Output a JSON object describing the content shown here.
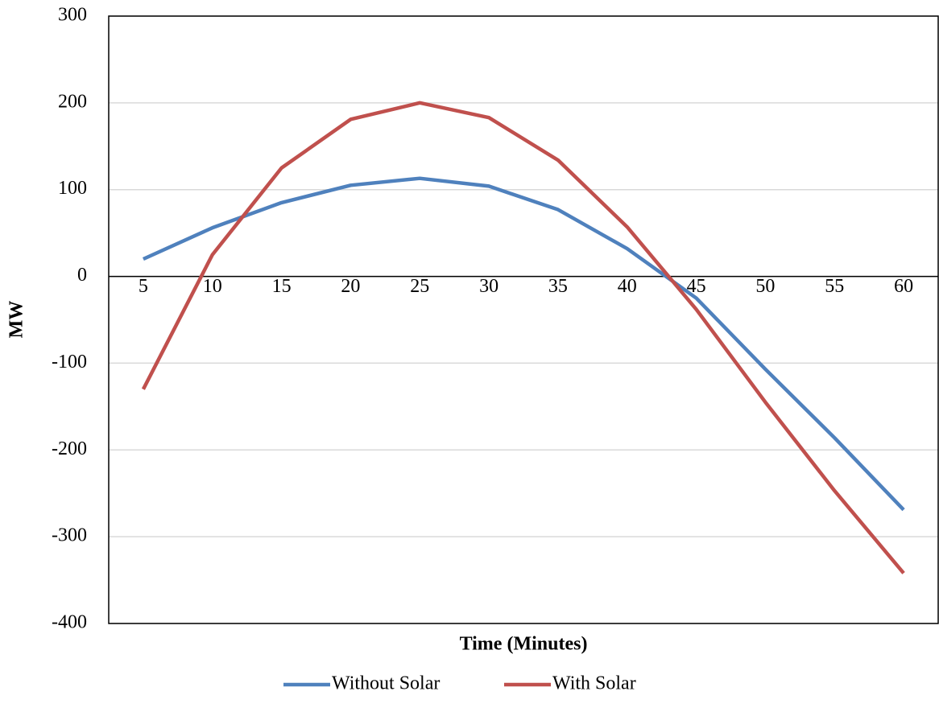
{
  "chart_data": {
    "type": "line",
    "x_label": "Time (Minutes)",
    "y_label": "MW",
    "categories": [
      5,
      10,
      15,
      20,
      25,
      30,
      35,
      40,
      45,
      50,
      55,
      60
    ],
    "series": [
      {
        "name": "Without Solar",
        "color": "#4f81bd",
        "values": [
          20,
          56,
          85,
          105,
          113,
          104,
          77,
          32,
          -25,
          -107,
          -186,
          -269
        ]
      },
      {
        "name": "With Solar",
        "color": "#c0504d",
        "values": [
          -130,
          25,
          125,
          181,
          200,
          183,
          134,
          57,
          -38,
          -145,
          -247,
          -342
        ]
      }
    ],
    "ylim": [
      -400,
      300
    ],
    "yticks": [
      -400,
      -300,
      -200,
      -100,
      0,
      100,
      200,
      300
    ],
    "grid": true,
    "legend": "bottom"
  }
}
